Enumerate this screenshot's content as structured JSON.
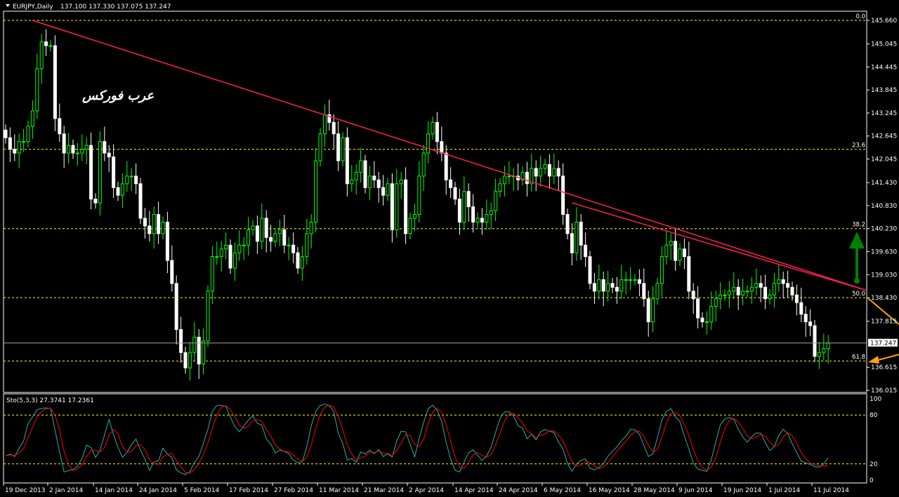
{
  "header": {
    "symbol": "EURJPY,Daily",
    "ohlc": "137.100 137.330 137.075 137.247",
    "menu_icon": "triangle-down-icon"
  },
  "watermark": "عرب فوركس",
  "stoch_header": "Sto(5,3,3) 27.3741 17.2361",
  "price_scale": [
    "145.660",
    "145.045",
    "144.445",
    "143.845",
    "143.245",
    "142.645",
    "142.045",
    "141.430",
    "140.830",
    "140.230",
    "139.630",
    "139.030",
    "138.430",
    "137.815",
    "137.247",
    "136.615",
    "136.015"
  ],
  "last_price": "137.247",
  "fib_levels": [
    {
      "label": "0.0",
      "price": 145.66
    },
    {
      "label": "23.6",
      "price": 142.3
    },
    {
      "label": "38.2",
      "price": 140.23
    },
    {
      "label": "50.0",
      "price": 138.43
    },
    {
      "label": "61.8",
      "price": 136.78
    }
  ],
  "stoch_scale": [
    "100",
    "80",
    "20",
    "0"
  ],
  "date_labels": [
    "19 Dec 2013",
    "2 Jan 2014",
    "14 Jan 2014",
    "24 Jan 2014",
    "5 Feb 2014",
    "17 Feb 2014",
    "27 Feb 2014",
    "11 Mar 2014",
    "21 Mar 2014",
    "2 Apr 2014",
    "14 Apr 2014",
    "24 Apr 2014",
    "6 May 2014",
    "16 May 2014",
    "28 May 2014",
    "9 Jun 2014",
    "19 Jun 2014",
    "1 Jul 2014",
    "11 Jul 2014"
  ],
  "colors": {
    "background": "#000000",
    "bull": "#00ff00",
    "bear": "#ffffff",
    "trendline": "#ff2050",
    "fib": "#ffff00",
    "arrow_up": "#008000",
    "arrow_orange": "#ffa500",
    "stoch_main": "#20b2aa",
    "stoch_signal": "#ff0000"
  },
  "chart_data": {
    "type": "candlestick",
    "symbol": "EURJPY",
    "timeframe": "Daily",
    "ylim": [
      136.015,
      145.66
    ],
    "closes": [
      142.6,
      142.3,
      142.2,
      142.5,
      142.5,
      142.9,
      143.3,
      144.4,
      145.1,
      145.0,
      145.0,
      143.1,
      142.7,
      142.2,
      142.4,
      142.2,
      142.2,
      142.3,
      142.4,
      141.0,
      140.9,
      142.5,
      142.2,
      142.1,
      141.3,
      141.1,
      141.4,
      141.6,
      141.6,
      141.4,
      140.5,
      140.3,
      140.1,
      140.6,
      140.1,
      140.4,
      139.4,
      138.8,
      137.6,
      137.0,
      136.6,
      137.0,
      137.4,
      136.7,
      137.3,
      138.6,
      139.5,
      139.5,
      139.7,
      139.8,
      139.2,
      139.6,
      139.8,
      139.8,
      140.2,
      140.3,
      139.9,
      140.5,
      140.0,
      139.9,
      140.1,
      140.2,
      139.8,
      139.8,
      139.6,
      139.2,
      139.5,
      140.1,
      140.4,
      142.0,
      142.7,
      143.2,
      143.0,
      142.7,
      142.0,
      142.6,
      141.4,
      141.5,
      141.7,
      142.0,
      141.3,
      141.6,
      141.5,
      141.3,
      141.1,
      141.4,
      140.2,
      141.4,
      141.5,
      140.1,
      140.5,
      140.6,
      141.6,
      142.2,
      142.7,
      143.0,
      142.5,
      142.2,
      141.5,
      141.3,
      141.0,
      140.4,
      141.2,
      140.8,
      140.4,
      140.5,
      140.4,
      140.6,
      140.7,
      141.2,
      141.4,
      141.6,
      141.6,
      141.6,
      141.5,
      141.7,
      141.4,
      141.8,
      141.6,
      141.8,
      141.9,
      141.6,
      141.8,
      141.6,
      140.6,
      140.1,
      139.6,
      140.4,
      139.8,
      139.5,
      138.8,
      138.6,
      138.9,
      138.6,
      138.8,
      138.7,
      138.6,
      138.9,
      138.9,
      138.9,
      138.9,
      138.8,
      138.4,
      137.8,
      138.4,
      138.8,
      139.5,
      139.8,
      139.9,
      139.4,
      139.7,
      139.5,
      138.6,
      138.4,
      137.9,
      137.8,
      137.8,
      138.2,
      138.4,
      138.5,
      138.5,
      138.6,
      138.7,
      138.5,
      138.6,
      138.6,
      138.7,
      138.8,
      138.7,
      138.4,
      138.5,
      138.8,
      138.9,
      138.8,
      138.7,
      138.5,
      138.3,
      138.0,
      137.8,
      137.7,
      136.9,
      137.0,
      137.1,
      137.247
    ],
    "stochastic": {
      "params": "5,3,3",
      "main_last": 27.3741,
      "signal_last": 17.2361,
      "levels": [
        80,
        20
      ]
    },
    "trendlines": [
      {
        "from": "20 Dec 2013",
        "to": "end",
        "start_price": 145.66,
        "end_price": 138.62
      },
      {
        "from": "8 May 2014",
        "to": "end",
        "start_price": 140.9,
        "end_price": 138.62
      }
    ]
  }
}
